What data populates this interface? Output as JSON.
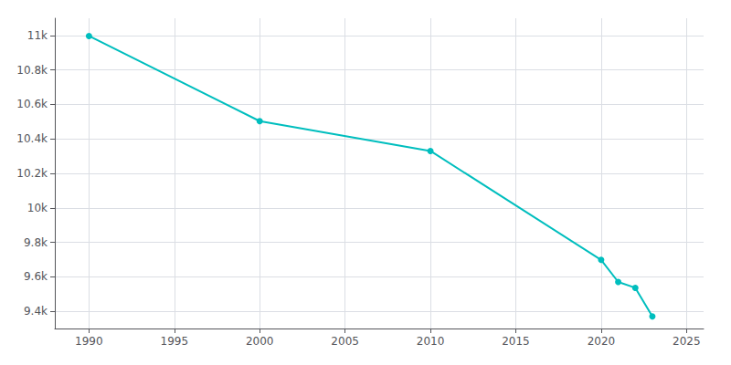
{
  "chart_data": {
    "type": "line",
    "x": [
      1990,
      2000,
      2010,
      2020,
      2021,
      2022,
      2023
    ],
    "values": [
      10997,
      10503,
      10330,
      9698,
      9570,
      9536,
      9370
    ],
    "color": "#00BEBE",
    "marker": "circle",
    "xlim": [
      1988,
      2026
    ],
    "xticks": [
      1990,
      1995,
      2000,
      2005,
      2010,
      2015,
      2020,
      2025
    ],
    "ylim": [
      9300,
      11100
    ],
    "yticks": [
      {
        "value": 9400,
        "label": "9.4k"
      },
      {
        "value": 9600,
        "label": "9.6k"
      },
      {
        "value": 9800,
        "label": "9.8k"
      },
      {
        "value": 10000,
        "label": "10k"
      },
      {
        "value": 10200,
        "label": "10.2k"
      },
      {
        "value": 10400,
        "label": "10.4k"
      },
      {
        "value": 10600,
        "label": "10.6k"
      },
      {
        "value": 10800,
        "label": "10.8k"
      },
      {
        "value": 11000,
        "label": "11k"
      }
    ],
    "grid": true
  }
}
